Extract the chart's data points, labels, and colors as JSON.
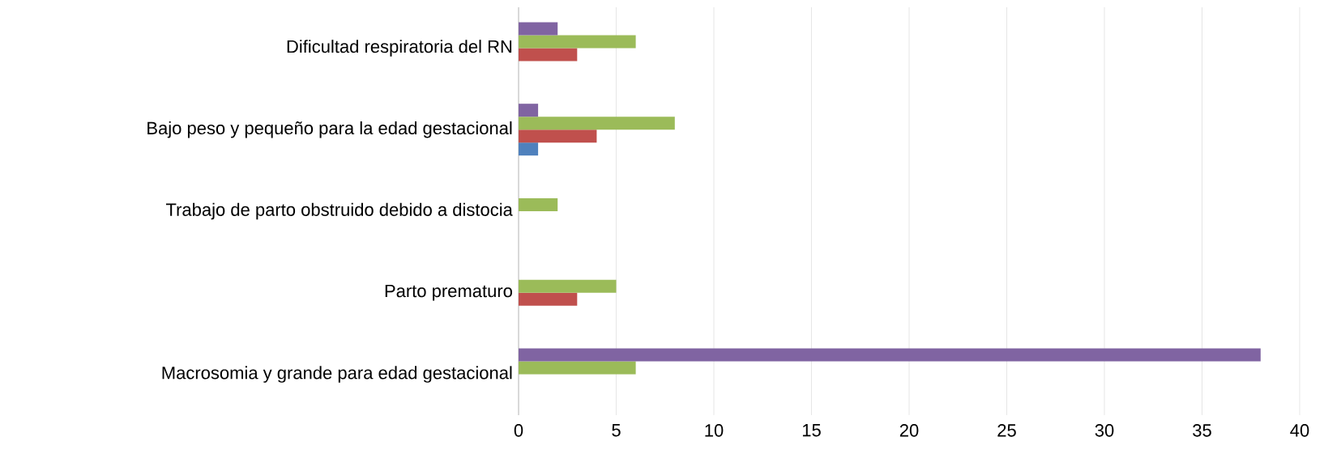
{
  "chart_data": {
    "type": "bar",
    "orientation": "horizontal",
    "categories": [
      "Dificultad respiratoria del RN",
      "Bajo peso y pequeño para la edad gestacional",
      "Trabajo de parto obstruido debido a distocia",
      "Parto prematuro",
      "Macrosomia y grande para edad gestacional"
    ],
    "series": [
      {
        "color": "#4f81bd",
        "values": [
          0,
          1,
          0,
          0,
          0
        ]
      },
      {
        "color": "#c0504d",
        "values": [
          3,
          4,
          0,
          3,
          0
        ]
      },
      {
        "color": "#9bbb59",
        "values": [
          6,
          8,
          2,
          5,
          6
        ]
      },
      {
        "color": "#8064a2",
        "values": [
          2,
          1,
          0,
          0,
          38
        ]
      }
    ],
    "xlim": [
      0,
      40
    ],
    "xticks": [
      0,
      5,
      10,
      15,
      20,
      25,
      30,
      35,
      40
    ],
    "grid": "x"
  }
}
